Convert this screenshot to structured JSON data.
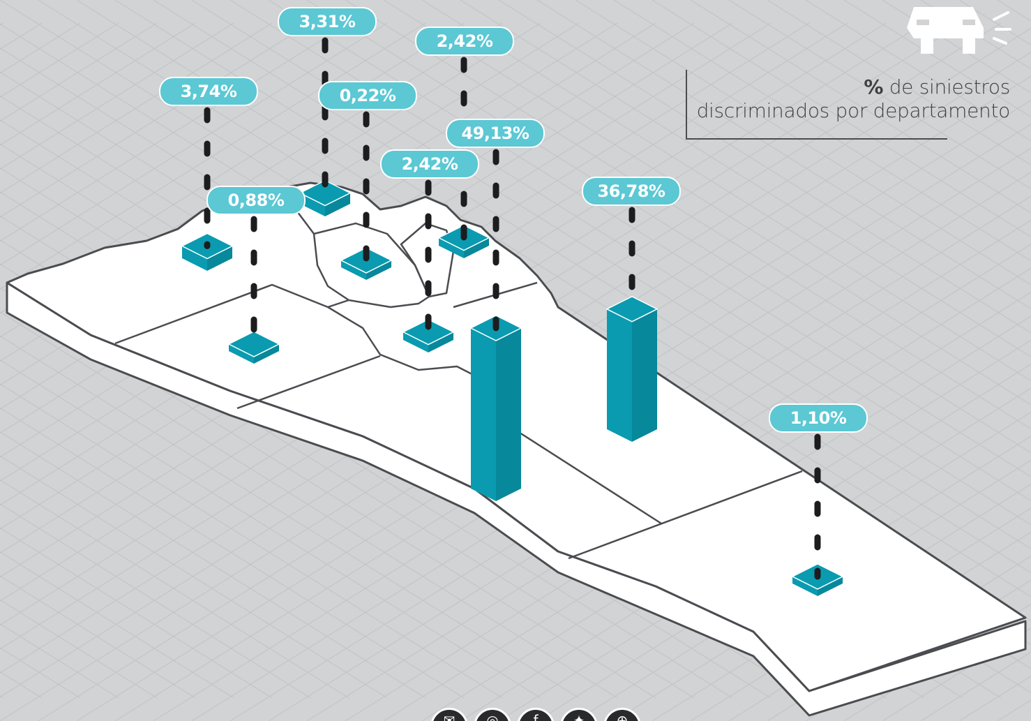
{
  "caption": {
    "bold": "%",
    "line1": " de siniestros",
    "line2": "discriminados por departamento"
  },
  "colors": {
    "bar": "#0a9bb0",
    "bar_dark": "#07889b",
    "label_bg": "#5bc8d4",
    "map": "#ffffff",
    "outline": "#4a4c50",
    "background": "#d2d3d5"
  },
  "icons": {
    "corner": "car-icon",
    "social": [
      "chat-icon",
      "instagram-icon",
      "facebook-icon",
      "twitter-icon",
      "web-icon"
    ]
  },
  "chart_data": {
    "type": "bar",
    "title": "% de siniestros discriminados por departamento",
    "unit": "%",
    "categories": [
      "",
      "",
      "",
      "",
      "",
      "",
      "",
      "",
      ""
    ],
    "values": [
      3.74,
      3.31,
      0.22,
      0.88,
      2.42,
      2.42,
      49.13,
      36.78,
      1.1
    ],
    "labels": [
      "3,74%",
      "3,31%",
      "0,22%",
      "0,88%",
      "2,42%",
      "2,42%",
      "49,13%",
      "36,78%",
      "1,10%"
    ]
  }
}
